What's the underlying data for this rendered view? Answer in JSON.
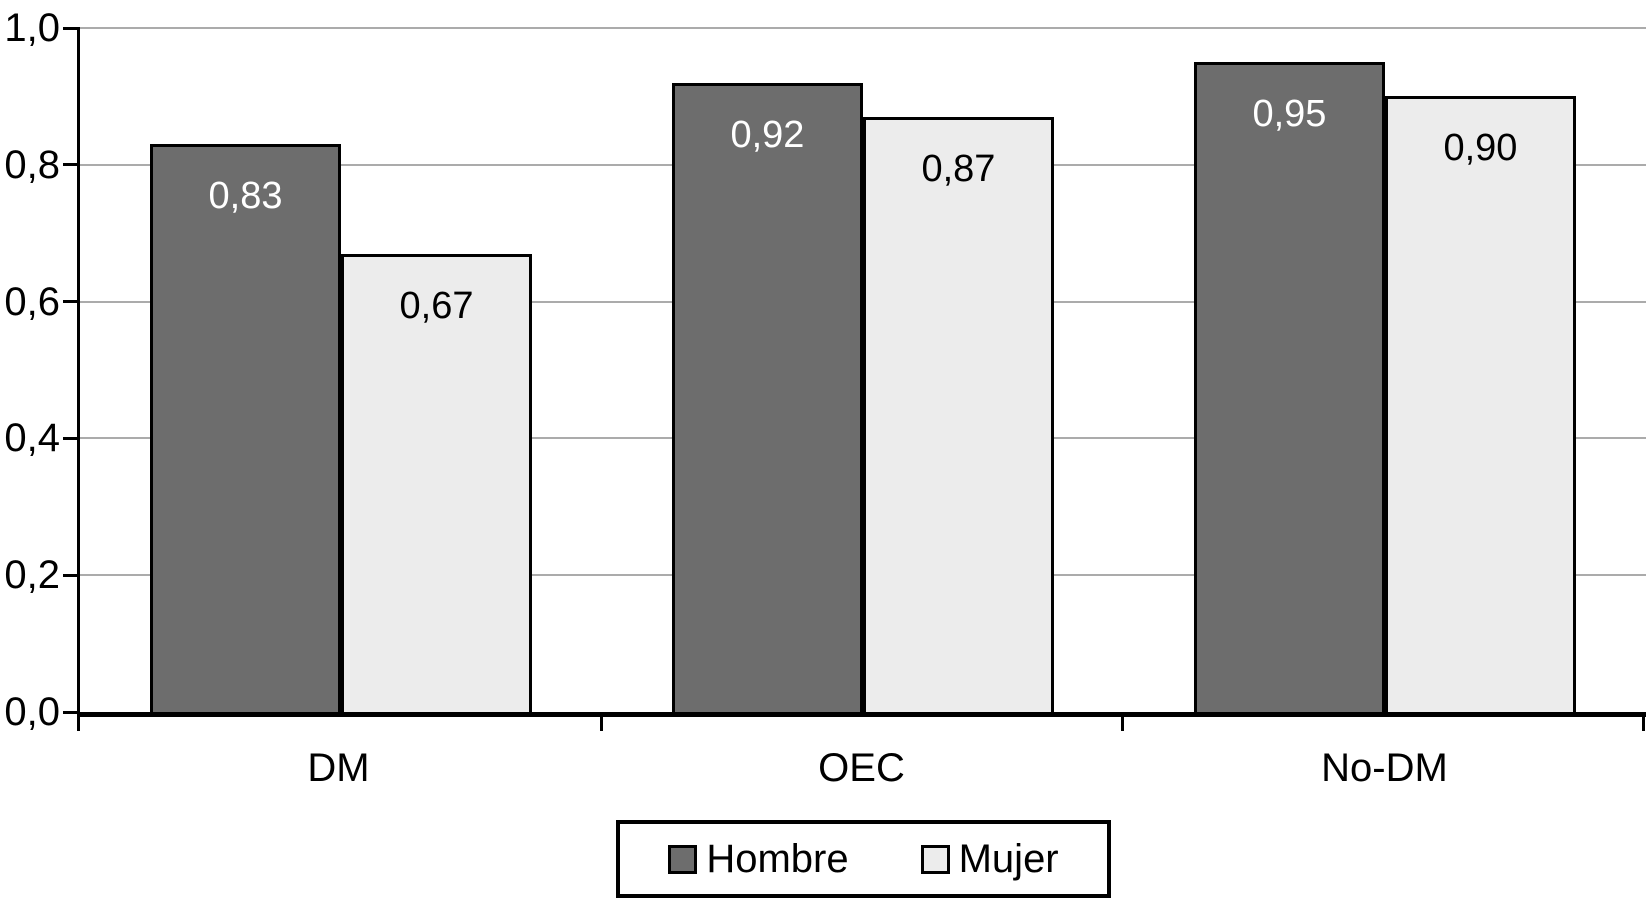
{
  "chart_data": {
    "type": "bar",
    "title": "",
    "categories": [
      "DM",
      "OEC",
      "No-DM"
    ],
    "series": [
      {
        "name": "Hombre",
        "values": [
          0.83,
          0.92,
          0.95
        ],
        "value_labels": [
          "0,83",
          "0,92",
          "0,95"
        ],
        "color": "#6d6d6d",
        "border_color": "#000000",
        "value_label_color": "#ffffff"
      },
      {
        "name": "Mujer",
        "values": [
          0.67,
          0.87,
          0.9
        ],
        "value_labels": [
          "0,67",
          "0,87",
          "0,90"
        ],
        "color": "#ececec",
        "border_color": "#000000",
        "value_label_color": "#000000"
      }
    ],
    "xlabel": "",
    "ylabel": "",
    "ylim": [
      0,
      1.0
    ],
    "yticks": [
      {
        "value": 0.0,
        "label": "0,0"
      },
      {
        "value": 0.2,
        "label": "0,2"
      },
      {
        "value": 0.4,
        "label": "0,4"
      },
      {
        "value": 0.6,
        "label": "0,6"
      },
      {
        "value": 0.8,
        "label": "0,8"
      },
      {
        "value": 1.0,
        "label": "1,0"
      }
    ],
    "decimal_separator": ",",
    "grid": true,
    "gridline_color": "#ababab",
    "axis_color": "#000000",
    "legend_position": "bottom",
    "legend_entries": [
      "Hombre",
      "Mujer"
    ]
  }
}
